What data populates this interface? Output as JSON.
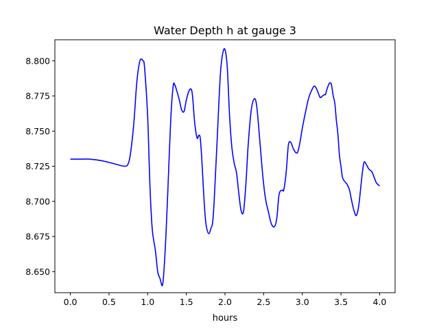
{
  "chart_data": {
    "type": "line",
    "title": "Water Depth h at gauge 3",
    "xlabel": "hours",
    "ylabel": "",
    "xlim": [
      -0.2,
      4.2
    ],
    "ylim": [
      8.635,
      8.815
    ],
    "xticks": [
      0.0,
      0.5,
      1.0,
      1.5,
      2.0,
      2.5,
      3.0,
      3.5,
      4.0
    ],
    "xtick_labels": [
      "0.0",
      "0.5",
      "1.0",
      "1.5",
      "2.0",
      "2.5",
      "3.0",
      "3.5",
      "4.0"
    ],
    "yticks": [
      8.65,
      8.675,
      8.7,
      8.725,
      8.75,
      8.775,
      8.8
    ],
    "ytick_labels": [
      "8.650",
      "8.675",
      "8.700",
      "8.725",
      "8.750",
      "8.775",
      "8.800"
    ],
    "grid": false,
    "series": [
      {
        "color": "#0000ff",
        "x": [
          0.0,
          0.1,
          0.25,
          0.4,
          0.55,
          0.7,
          0.75,
          0.78,
          0.82,
          0.86,
          0.9,
          0.94,
          0.96,
          1.0,
          1.03,
          1.06,
          1.1,
          1.13,
          1.16,
          1.19,
          1.21,
          1.24,
          1.27,
          1.3,
          1.33,
          1.35,
          1.38,
          1.41,
          1.44,
          1.47,
          1.5,
          1.53,
          1.56,
          1.58,
          1.61,
          1.64,
          1.66,
          1.68,
          1.7,
          1.72,
          1.74,
          1.76,
          1.79,
          1.82,
          1.84,
          1.86,
          1.9,
          1.94,
          1.97,
          2.0,
          2.03,
          2.06,
          2.09,
          2.12,
          2.15,
          2.18,
          2.21,
          2.24,
          2.27,
          2.3,
          2.34,
          2.38,
          2.41,
          2.44,
          2.47,
          2.5,
          2.53,
          2.56,
          2.6,
          2.64,
          2.67,
          2.7,
          2.74,
          2.76,
          2.79,
          2.82,
          2.85,
          2.88,
          2.91,
          2.94,
          2.97,
          3.0,
          3.04,
          3.08,
          3.12,
          3.16,
          3.2,
          3.23,
          3.26,
          3.29,
          3.3,
          3.32,
          3.35,
          3.37,
          3.38,
          3.4,
          3.42,
          3.44,
          3.46,
          3.48,
          3.5,
          3.52,
          3.55,
          3.58,
          3.61,
          3.64,
          3.67,
          3.7,
          3.73,
          3.76,
          3.78,
          3.8,
          3.83,
          3.86,
          3.9,
          3.93,
          3.96,
          4.0
        ],
        "y": [
          8.73,
          8.73,
          8.73,
          8.729,
          8.727,
          8.725,
          8.727,
          8.735,
          8.755,
          8.785,
          8.8,
          8.8,
          8.795,
          8.76,
          8.71,
          8.68,
          8.665,
          8.65,
          8.645,
          8.64,
          8.65,
          8.68,
          8.72,
          8.76,
          8.782,
          8.783,
          8.778,
          8.772,
          8.765,
          8.764,
          8.772,
          8.778,
          8.78,
          8.775,
          8.755,
          8.745,
          8.747,
          8.745,
          8.73,
          8.71,
          8.692,
          8.682,
          8.677,
          8.681,
          8.685,
          8.7,
          8.745,
          8.79,
          8.805,
          8.808,
          8.795,
          8.76,
          8.738,
          8.727,
          8.72,
          8.705,
          8.693,
          8.693,
          8.712,
          8.74,
          8.765,
          8.773,
          8.768,
          8.75,
          8.73,
          8.712,
          8.7,
          8.693,
          8.684,
          8.682,
          8.688,
          8.705,
          8.708,
          8.708,
          8.72,
          8.74,
          8.742,
          8.738,
          8.735,
          8.735,
          8.742,
          8.752,
          8.763,
          8.773,
          8.779,
          8.782,
          8.778,
          8.774,
          8.775,
          8.776,
          8.776,
          8.78,
          8.784,
          8.784,
          8.782,
          8.775,
          8.77,
          8.758,
          8.748,
          8.733,
          8.725,
          8.717,
          8.714,
          8.712,
          8.708,
          8.7,
          8.693,
          8.69,
          8.697,
          8.712,
          8.722,
          8.728,
          8.726,
          8.723,
          8.721,
          8.717,
          8.713,
          8.711
        ]
      }
    ]
  }
}
